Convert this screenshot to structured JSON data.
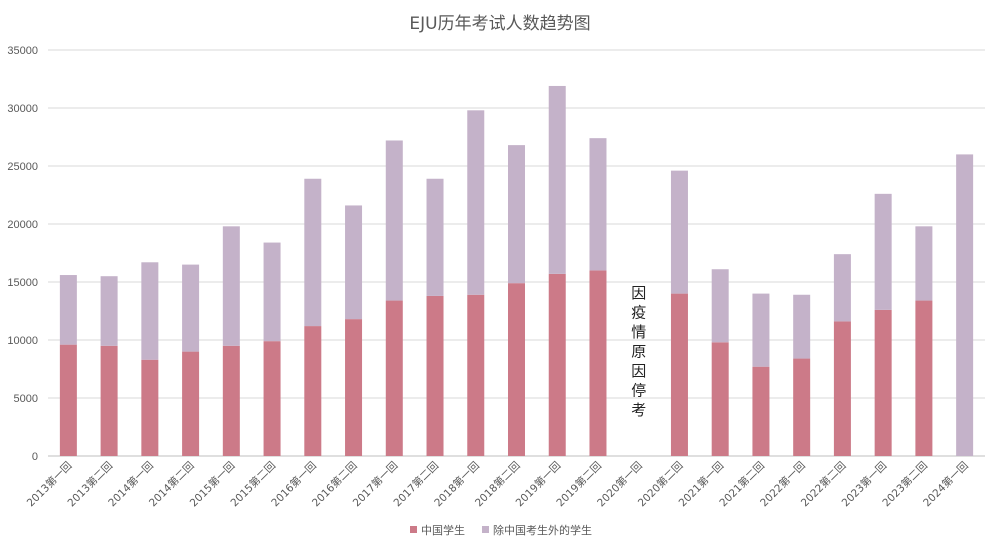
{
  "chart_data": {
    "type": "bar",
    "stacked": true,
    "title": "EJU历年考试人数趋势图",
    "xlabel": "",
    "ylabel": "",
    "ylim": [
      0,
      35000
    ],
    "yticks": [
      0,
      5000,
      10000,
      15000,
      20000,
      25000,
      30000,
      35000
    ],
    "grid": true,
    "legend_position": "bottom",
    "categories": [
      "2013第一回",
      "2013第二回",
      "2014第一回",
      "2014第二回",
      "2015第一回",
      "2015第二回",
      "2016第一回",
      "2016第二回",
      "2017第一回",
      "2017第二回",
      "2018第一回",
      "2018第二回",
      "2019第一回",
      "2019第二回",
      "2020第一回",
      "2020第二回",
      "2021第一回",
      "2021第二回",
      "2022第一回",
      "2022第二回",
      "2023第一回",
      "2023第二回",
      "2024第一回"
    ],
    "series": [
      {
        "name": "中国学生",
        "color": "#cc7a88",
        "values": [
          9600,
          9500,
          8300,
          9000,
          9500,
          9900,
          11200,
          11800,
          13400,
          13800,
          13900,
          14900,
          15700,
          16000,
          0,
          14000,
          9800,
          7700,
          8400,
          11600,
          12600,
          13400,
          0
        ]
      },
      {
        "name": "除中国考生外的学生",
        "color": "#c4b2c9",
        "values": [
          6000,
          6000,
          8400,
          7500,
          10300,
          8500,
          12700,
          9800,
          13800,
          10100,
          15900,
          11900,
          16200,
          11400,
          0,
          10600,
          6300,
          6300,
          5500,
          5800,
          10000,
          6400,
          26000
        ]
      }
    ],
    "annotation": {
      "text": "因疫情原因停考",
      "category": "2020第一回"
    }
  }
}
